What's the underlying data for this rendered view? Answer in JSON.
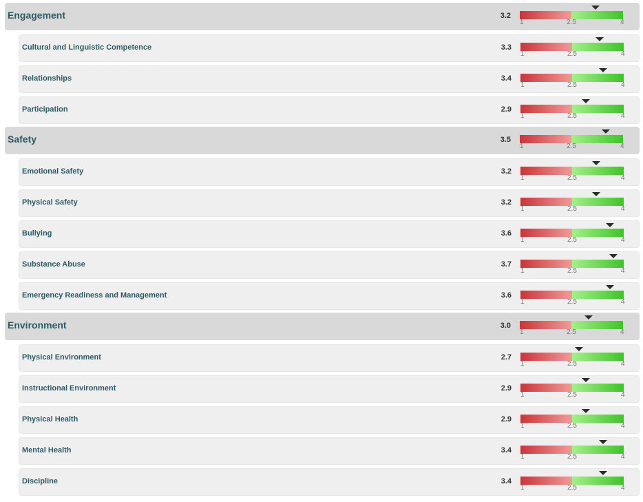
{
  "scale": {
    "min": 1,
    "mid": 2.5,
    "max": 4,
    "labels": [
      "1",
      "2.5",
      "4"
    ]
  },
  "colors": {
    "low_start": "#c9353a",
    "low_end": "#f29a9a",
    "high_start": "#a4f08a",
    "high_end": "#3fc32a",
    "marker": "#2b2b2b",
    "label": "#2e5a66"
  },
  "rows": [
    {
      "type": "category",
      "label": "Engagement",
      "score": "3.2",
      "value": 3.2
    },
    {
      "type": "sub",
      "label": "Cultural and Linguistic Competence",
      "score": "3.3",
      "value": 3.3
    },
    {
      "type": "sub",
      "label": "Relationships",
      "score": "3.4",
      "value": 3.4
    },
    {
      "type": "sub",
      "label": "Participation",
      "score": "2.9",
      "value": 2.9
    },
    {
      "type": "category",
      "label": "Safety",
      "score": "3.5",
      "value": 3.5
    },
    {
      "type": "sub",
      "label": "Emotional Safety",
      "score": "3.2",
      "value": 3.2
    },
    {
      "type": "sub",
      "label": "Physical Safety",
      "score": "3.2",
      "value": 3.2
    },
    {
      "type": "sub",
      "label": "Bullying",
      "score": "3.6",
      "value": 3.6
    },
    {
      "type": "sub",
      "label": "Substance Abuse",
      "score": "3.7",
      "value": 3.7
    },
    {
      "type": "sub",
      "label": "Emergency Readiness and Management",
      "score": "3.6",
      "value": 3.6
    },
    {
      "type": "category",
      "label": "Environment",
      "score": "3.0",
      "value": 3.0
    },
    {
      "type": "sub",
      "label": "Physical Environment",
      "score": "2.7",
      "value": 2.7
    },
    {
      "type": "sub",
      "label": "Instructional Environment",
      "score": "2.9",
      "value": 2.9
    },
    {
      "type": "sub",
      "label": "Physical Health",
      "score": "2.9",
      "value": 2.9
    },
    {
      "type": "sub",
      "label": "Mental Health",
      "score": "3.4",
      "value": 3.4
    },
    {
      "type": "sub",
      "label": "Discipline",
      "score": "3.4",
      "value": 3.4
    }
  ]
}
